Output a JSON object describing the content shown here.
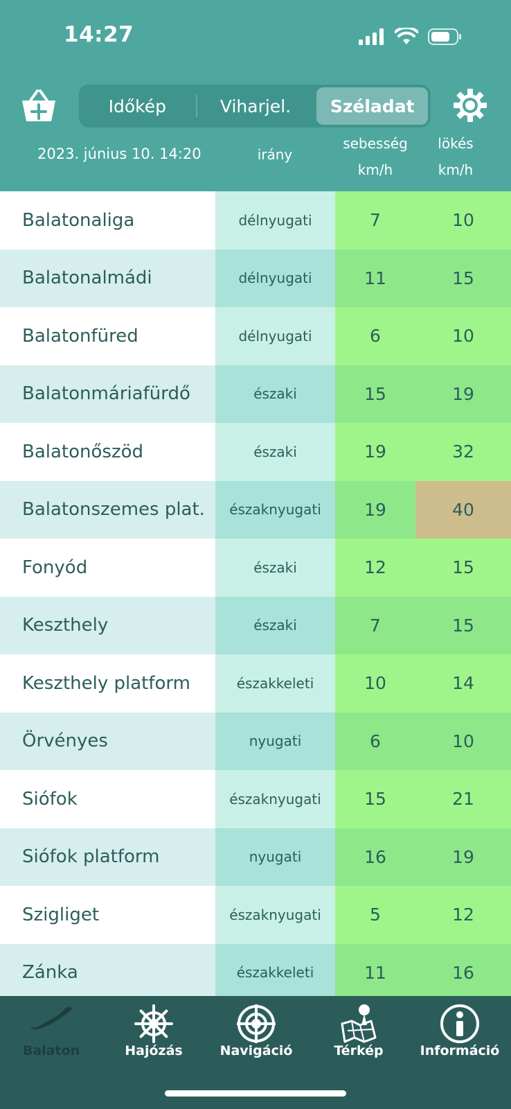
{
  "status": {
    "time": "14:27"
  },
  "tabs": {
    "items": [
      "Időkép",
      "Viharjel.",
      "Széladat"
    ],
    "active": 2
  },
  "header": {
    "date": "2023. június 10. 14:20",
    "col_direction": "irány",
    "col_speed_line1": "sebesség",
    "col_speed_line2": "km/h",
    "col_gust_line1": "lökés",
    "col_gust_line2": "km/h"
  },
  "rows": [
    {
      "name": "Balatonaliga",
      "direction": "délnyugati",
      "speed": "7",
      "gust": "10"
    },
    {
      "name": "Balatonalmádi",
      "direction": "délnyugati",
      "speed": "11",
      "gust": "15"
    },
    {
      "name": "Balatonfüred",
      "direction": "délnyugati",
      "speed": "6",
      "gust": "10"
    },
    {
      "name": "Balatonmáriafürdő",
      "direction": "északi",
      "speed": "15",
      "gust": "19"
    },
    {
      "name": "Balatonőszöd",
      "direction": "északi",
      "speed": "19",
      "gust": "32"
    },
    {
      "name": "Balatonszemes plat.",
      "direction": "északnyugati",
      "speed": "19",
      "gust": "40"
    },
    {
      "name": "Fonyód",
      "direction": "északi",
      "speed": "12",
      "gust": "15"
    },
    {
      "name": "Keszthely",
      "direction": "északi",
      "speed": "7",
      "gust": "15"
    },
    {
      "name": "Keszthely platform",
      "direction": "északkeleti",
      "speed": "10",
      "gust": "14"
    },
    {
      "name": "Örvényes",
      "direction": "nyugati",
      "speed": "6",
      "gust": "10"
    },
    {
      "name": "Siófok",
      "direction": "északnyugati",
      "speed": "15",
      "gust": "21"
    },
    {
      "name": "Siófok platform",
      "direction": "nyugati",
      "speed": "16",
      "gust": "19"
    },
    {
      "name": "Szigliget",
      "direction": "északnyugati",
      "speed": "5",
      "gust": "12"
    },
    {
      "name": "Zánka",
      "direction": "északkeleti",
      "speed": "11",
      "gust": "16"
    }
  ],
  "alert_row": 5,
  "bottom_nav": {
    "items": [
      "Balaton",
      "Hajózás",
      "Navigáció",
      "Térkép",
      "Információ"
    ],
    "active": 0
  },
  "colors": {
    "header_bg": "#4ea8a0",
    "tabbar_bg": "#2b5c5a",
    "alert_gust": "#cdbd8c"
  }
}
